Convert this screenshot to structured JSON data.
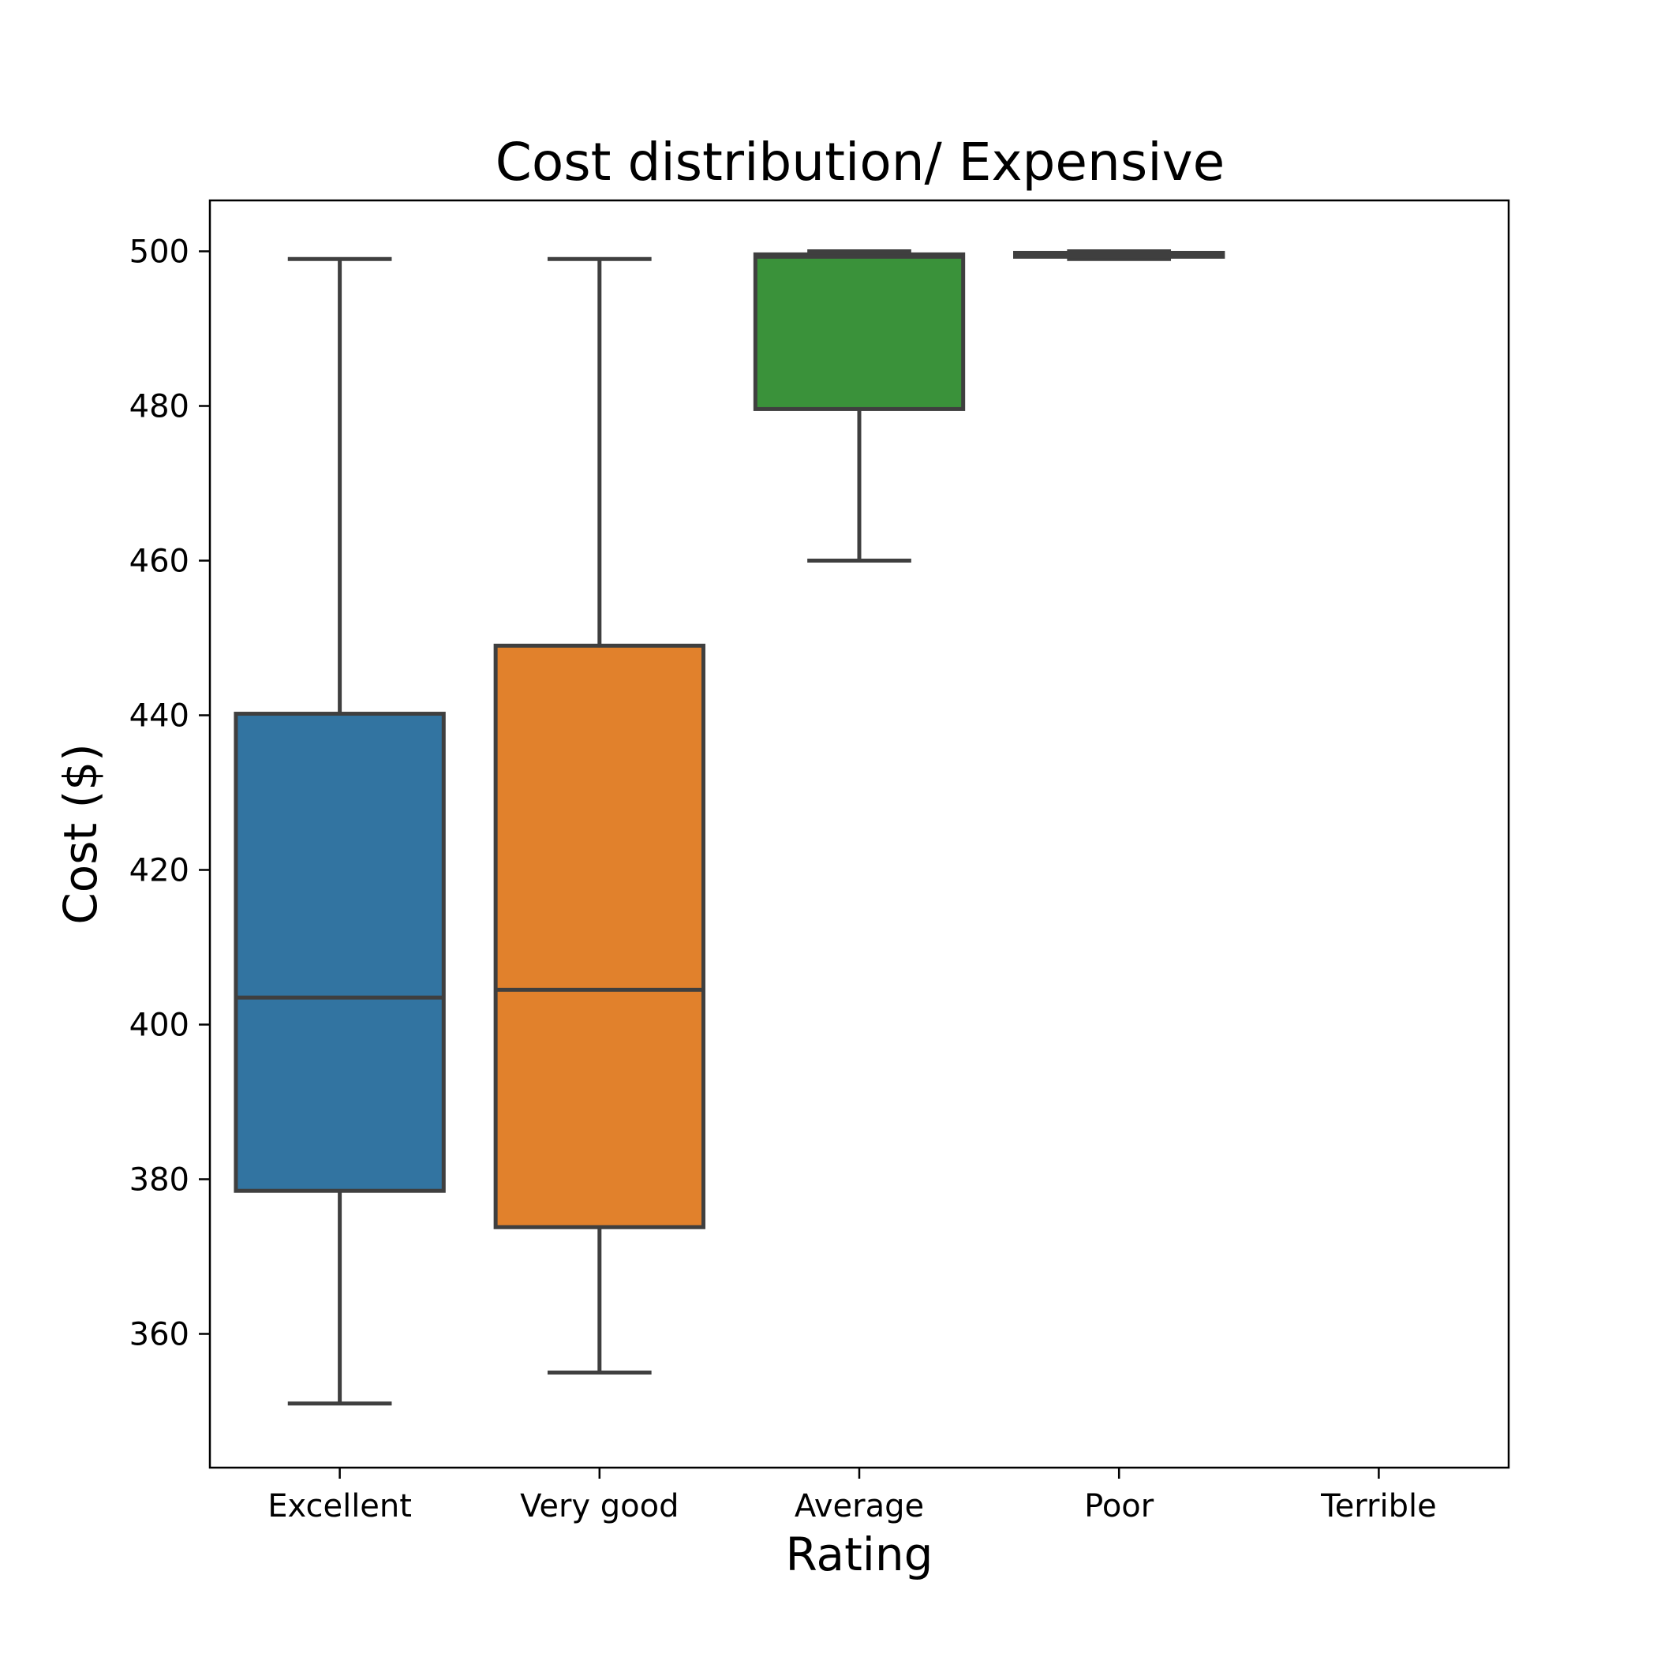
{
  "chart_data": {
    "type": "box",
    "title": "Cost distribution/ Expensive",
    "xlabel": "Rating",
    "ylabel": "Cost ($)",
    "categories": [
      "Excellent",
      "Very good",
      "Average",
      "Poor",
      "Terrible"
    ],
    "ylim": [
      343,
      507
    ],
    "yticks": [
      360,
      380,
      400,
      420,
      440,
      460,
      480,
      500
    ],
    "grid": false,
    "boxes": [
      {
        "category": "Excellent",
        "whislo": 351,
        "q1": 378.5,
        "med": 403.5,
        "q3": 440.2,
        "whishi": 499,
        "color": "#3274a1"
      },
      {
        "category": "Very good",
        "whislo": 355,
        "q1": 373.8,
        "med": 404.5,
        "q3": 449,
        "whishi": 499,
        "color": "#e1812c"
      },
      {
        "category": "Average",
        "whislo": 460,
        "q1": 479.6,
        "med": 499.3,
        "q3": 499.6,
        "whishi": 500,
        "color": "#3a923a"
      },
      {
        "category": "Poor",
        "whislo": 499,
        "q1": 499.3,
        "med": 499.6,
        "q3": 499.8,
        "whishi": 500,
        "color": "#c03d3e"
      },
      {
        "category": "Terrible",
        "whislo": null,
        "q1": null,
        "med": null,
        "q3": null,
        "whishi": null,
        "color": "#9372b2"
      }
    ]
  }
}
